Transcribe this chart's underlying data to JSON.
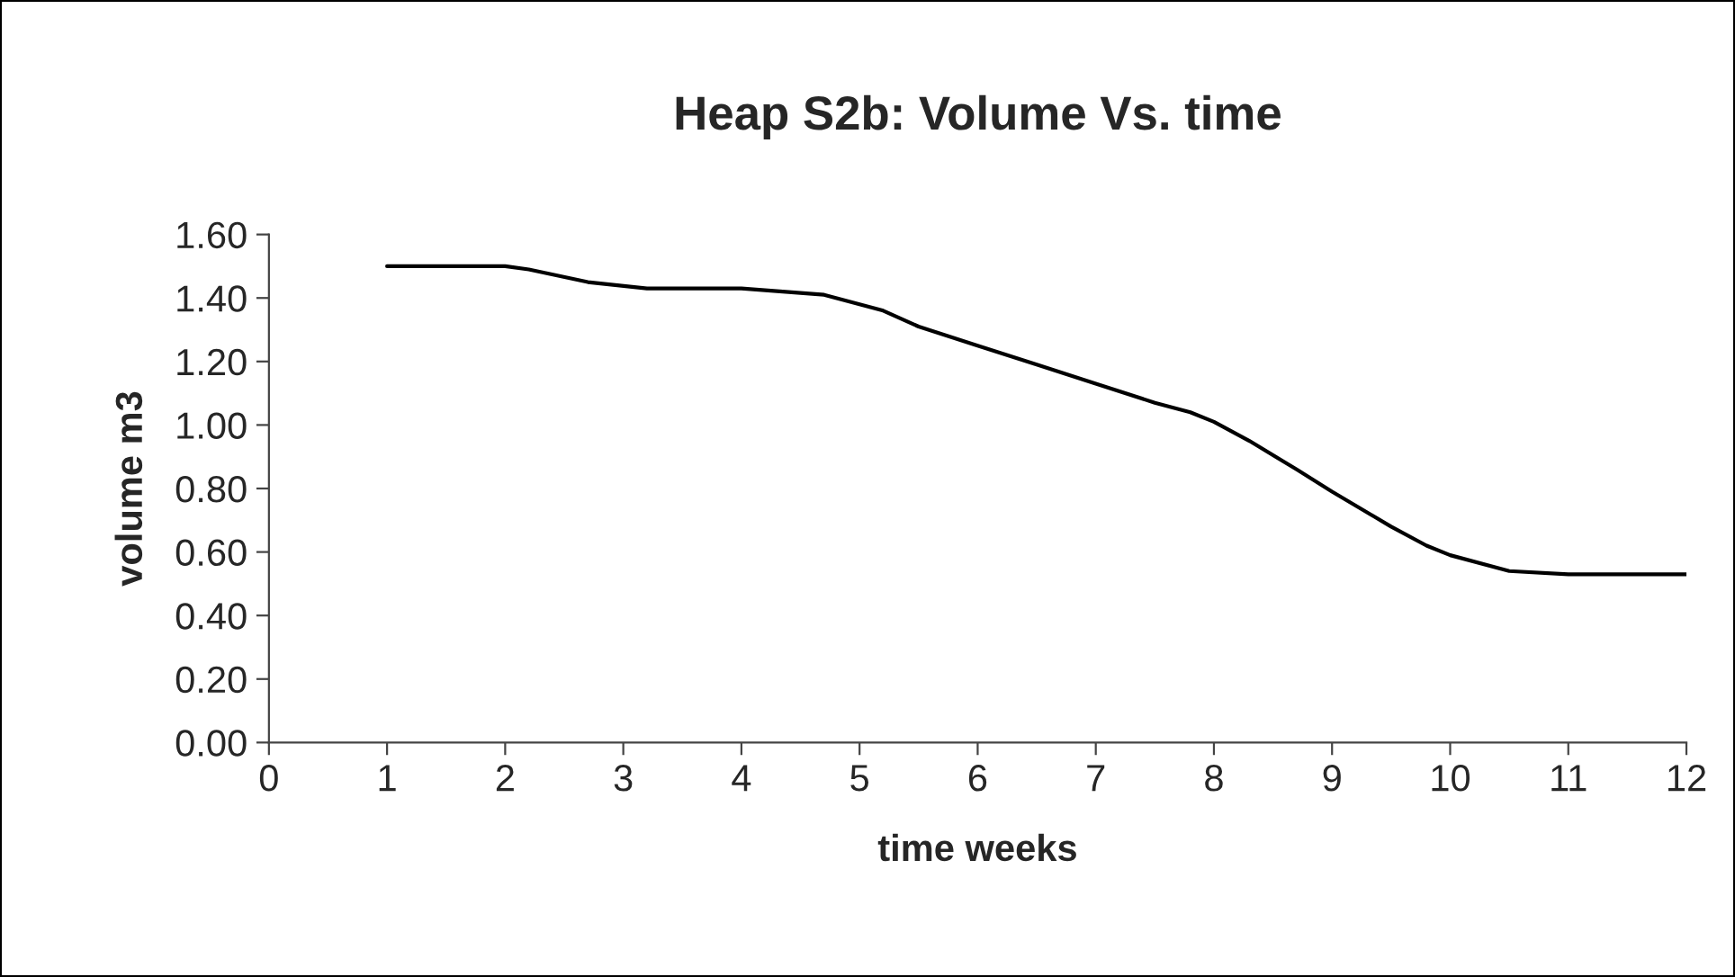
{
  "chart_data": {
    "type": "line",
    "title": "Heap S2b: Volume Vs. time",
    "xlabel": "time weeks",
    "ylabel": "volume m3",
    "series": [
      {
        "color": "#000000",
        "x": [
          1,
          2,
          2.2,
          2.7,
          3.2,
          4,
          4.7,
          5.2,
          5.5,
          6,
          6.5,
          7,
          7.5,
          7.8,
          8,
          8.3,
          8.7,
          9,
          9.5,
          9.8,
          10,
          10.5,
          11,
          12
        ],
        "values": [
          1.5,
          1.5,
          1.49,
          1.45,
          1.43,
          1.43,
          1.41,
          1.36,
          1.31,
          1.25,
          1.19,
          1.13,
          1.07,
          1.04,
          1.01,
          0.95,
          0.86,
          0.79,
          0.68,
          0.62,
          0.59,
          0.54,
          0.53,
          0.53
        ]
      }
    ],
    "xlim": [
      0,
      12
    ],
    "xticks": [
      0,
      1,
      2,
      3,
      4,
      5,
      6,
      7,
      8,
      9,
      10,
      11,
      12
    ],
    "ylim": [
      0,
      1.6
    ],
    "yticks": [
      {
        "value": 0,
        "label": "0.00"
      },
      {
        "value": 0.2,
        "label": "0.20"
      },
      {
        "value": 0.4,
        "label": "0.40"
      },
      {
        "value": 0.6,
        "label": "0.60"
      },
      {
        "value": 0.8,
        "label": "0.80"
      },
      {
        "value": 1.0,
        "label": "1.00"
      },
      {
        "value": 1.2,
        "label": "1.20"
      },
      {
        "value": 1.4,
        "label": "1.40"
      },
      {
        "value": 1.6,
        "label": "1.60"
      }
    ],
    "marker": "none",
    "line_style": "solid"
  }
}
